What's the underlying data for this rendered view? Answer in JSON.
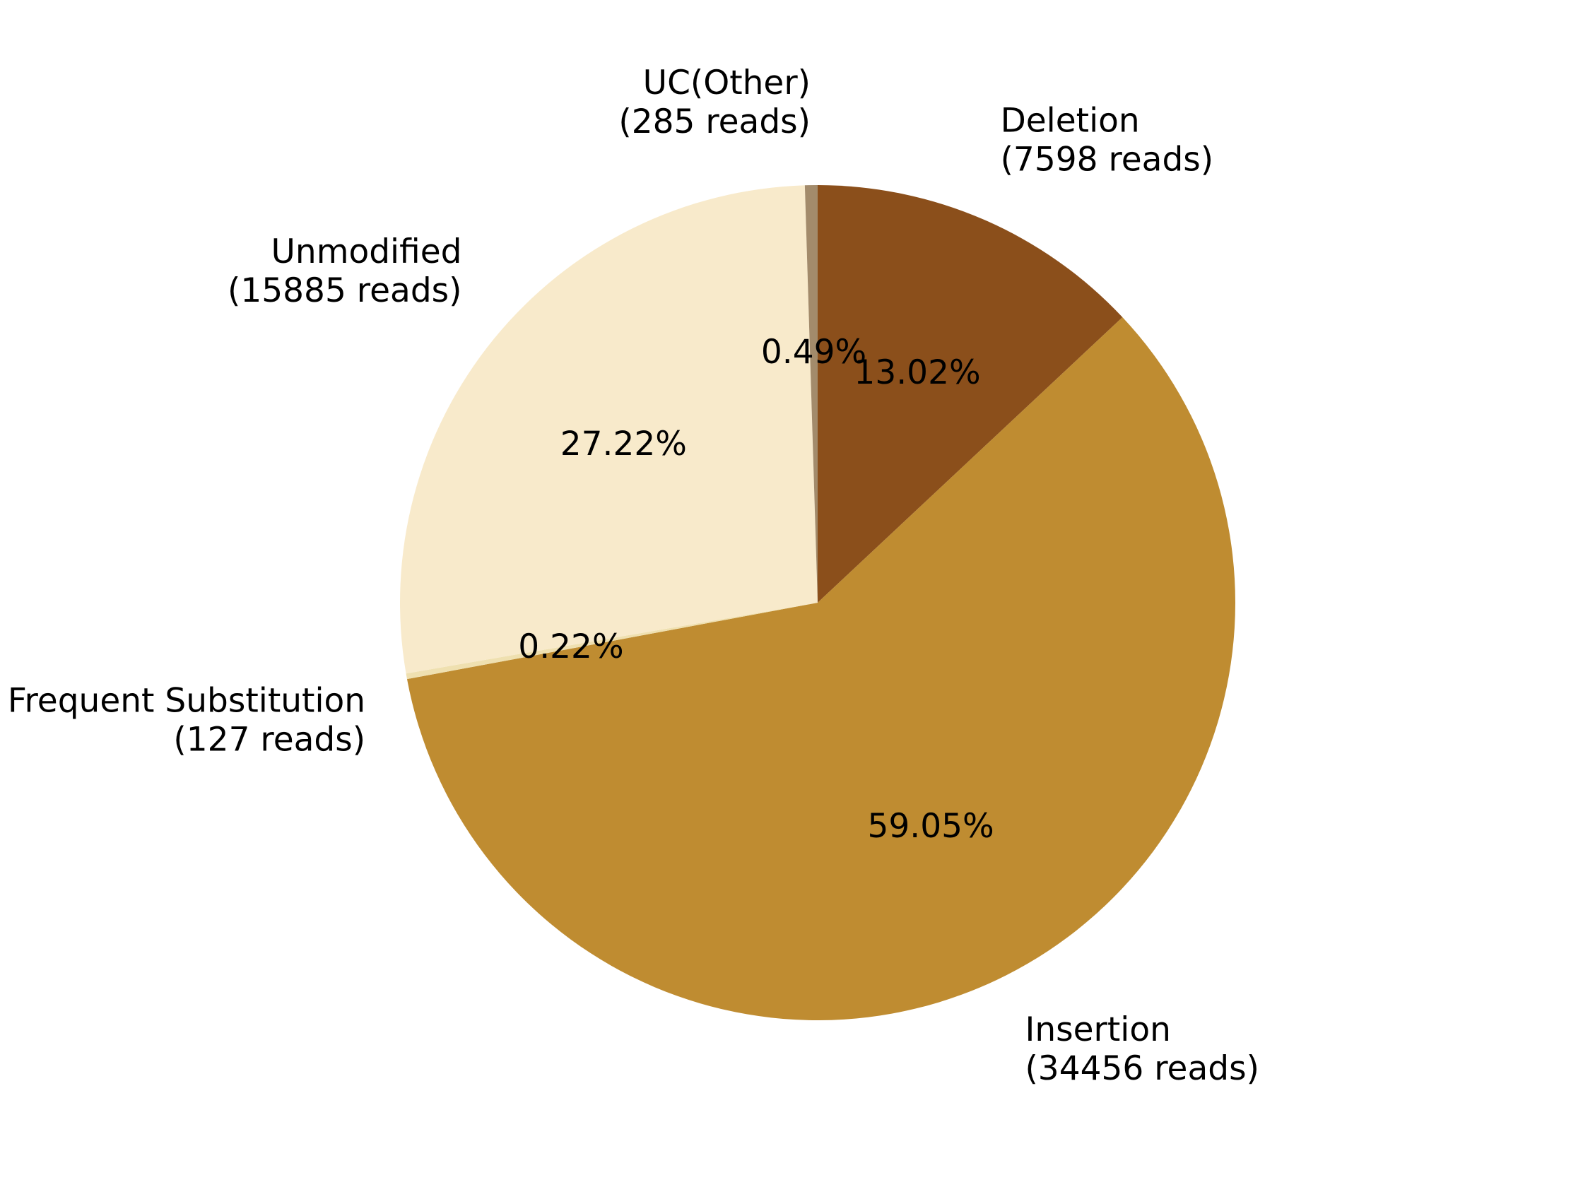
{
  "chart_data": {
    "type": "pie",
    "title": "",
    "start_angle_deg": 90,
    "direction": "clockwise",
    "slices": [
      {
        "name": "Deletion",
        "value": 7598,
        "reads_label": "(7598 reads)",
        "percent_label": "13.02%",
        "color": "#8B4F1B"
      },
      {
        "name": "Insertion",
        "value": 34456,
        "reads_label": "(34456 reads)",
        "percent_label": "59.05%",
        "color": "#BF8C31"
      },
      {
        "name": "Frequent Substitution",
        "value": 127,
        "reads_label": "(127 reads)",
        "percent_label": "0.22%",
        "color": "#EFE0B0"
      },
      {
        "name": "Unmodified",
        "value": 15885,
        "reads_label": "(15885 reads)",
        "percent_label": "27.22%",
        "color": "#F8EACB"
      },
      {
        "name": "UC(Other)",
        "value": 285,
        "reads_label": "(285 reads)",
        "percent_label": "0.49%",
        "color": "#A38B6B"
      }
    ]
  }
}
